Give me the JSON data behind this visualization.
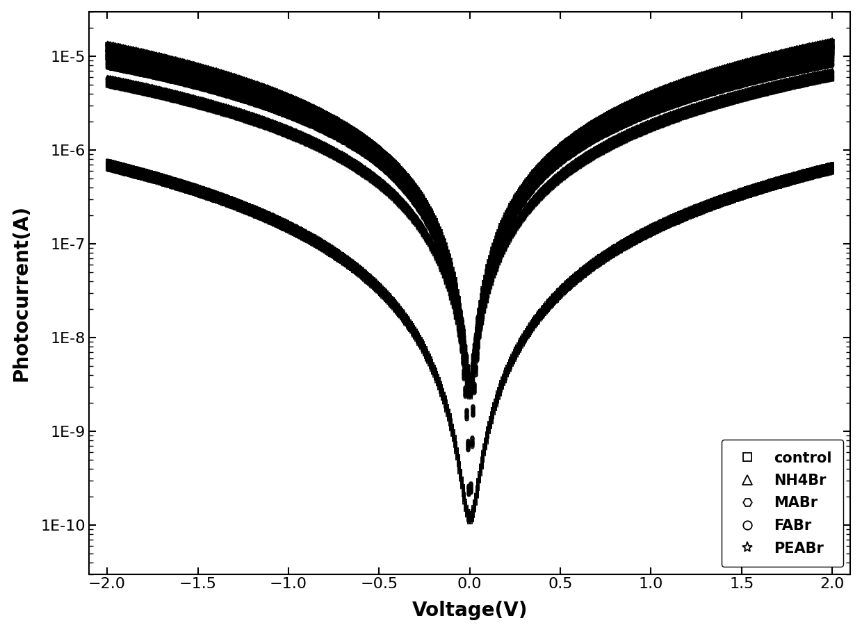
{
  "xlabel": "Voltage(V)",
  "ylabel": "Photocurrent(A)",
  "xlim": [
    -2.1,
    2.1
  ],
  "ylim": [
    3e-11,
    3e-05
  ],
  "background_color": "#ffffff",
  "xticks": [
    -2.0,
    -1.5,
    -1.0,
    -0.5,
    0.0,
    0.5,
    1.0,
    1.5,
    2.0
  ],
  "series": [
    {
      "name": "control",
      "marker": "s",
      "markersize": 3.5,
      "at_pos2V": 6.5e-07,
      "at_neg2V": 7e-07,
      "min_current": 1.2e-10,
      "exponent": 2.2,
      "n_sweeps": 120,
      "noise_low": 0.88,
      "noise_high": 1.12
    },
    {
      "name": "NH4Br",
      "marker": "^",
      "markersize": 3.5,
      "at_pos2V": 6.5e-06,
      "at_neg2V": 5.5e-06,
      "min_current": 2.5e-09,
      "exponent": 1.8,
      "n_sweeps": 120,
      "noise_low": 0.88,
      "noise_high": 1.12
    },
    {
      "name": "MABr",
      "marker": "H",
      "markersize": 3.5,
      "at_pos2V": 9e-06,
      "at_neg2V": 8.5e-06,
      "min_current": 3.5e-09,
      "exponent": 1.75,
      "n_sweeps": 120,
      "noise_low": 0.88,
      "noise_high": 1.12
    },
    {
      "name": "FABr",
      "marker": "o",
      "markersize": 3.5,
      "at_pos2V": 1.15e-05,
      "at_neg2V": 1.05e-05,
      "min_current": 1.2e-10,
      "exponent": 1.9,
      "n_sweeps": 120,
      "noise_low": 0.88,
      "noise_high": 1.12
    },
    {
      "name": "PEABr",
      "marker": "*",
      "markersize": 4.5,
      "at_pos2V": 1.35e-05,
      "at_neg2V": 1.25e-05,
      "min_current": 2.5e-09,
      "exponent": 1.85,
      "n_sweeps": 120,
      "noise_low": 0.88,
      "noise_high": 1.12
    }
  ]
}
